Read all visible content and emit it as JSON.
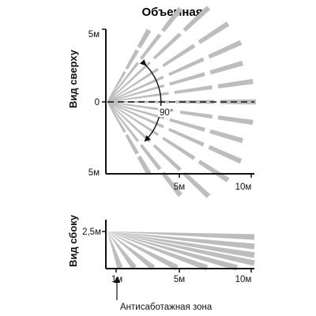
{
  "title": "Объемная",
  "top_view": {
    "label": "Вид сверху",
    "y_labels": {
      "top": "5м",
      "center": "0",
      "bottom": "5м"
    },
    "x_labels": [
      "5м",
      "10м"
    ],
    "angle_label": "90°"
  },
  "side_view": {
    "label": "Вид сбоку",
    "height_label": "2,5м",
    "x_labels": [
      "1м",
      "5м",
      "10м"
    ],
    "footnote": "Антисаботажная зона"
  },
  "colors": {
    "beam": "#bdbdbd",
    "axis": "#111111",
    "text": "#111111"
  }
}
